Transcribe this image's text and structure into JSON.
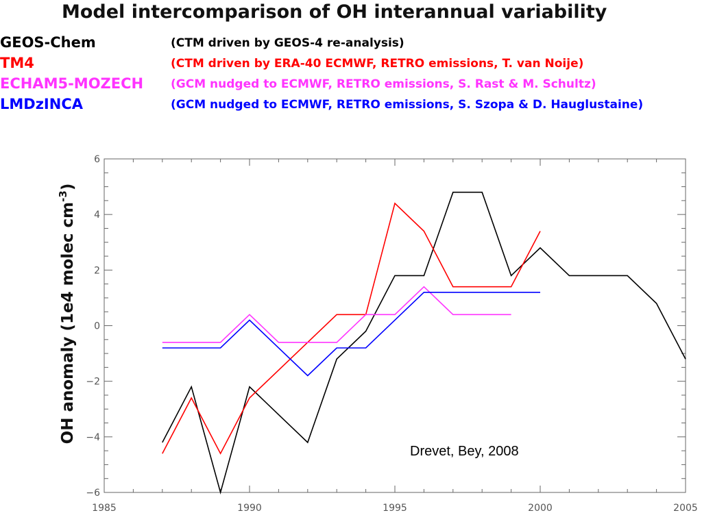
{
  "title": "Model intercomparison of OH interannual variability",
  "legend": [
    {
      "model": "GEOS-Chem",
      "desc": "(CTM driven by GEOS-4 re-analysis)",
      "color": "#000000"
    },
    {
      "model": "TM4",
      "desc": "(CTM driven by ERA-40 ECMWF, RETRO emissions, T. van Noije)",
      "color": "#ff0000"
    },
    {
      "model": "ECHAM5-MOZECH",
      "desc": "(GCM nudged to ECMWF, RETRO emissions, S. Rast & M. Schultz)",
      "color": "#ff33ff"
    },
    {
      "model": "LMDzINCA",
      "desc": "(GCM nudged to ECMWF, RETRO emissions, S. Szopa & D. Hauglustaine)",
      "color": "#0000ff"
    }
  ],
  "chart_data": {
    "type": "line",
    "title": "",
    "xlabel": "",
    "ylabel": "OH anomaly (1e4 molec cm-3)",
    "ylabel_parts": {
      "main": "OH anomaly (1e4 molec cm",
      "sup": "-3",
      "end": ")"
    },
    "xlim": [
      1985,
      2005
    ],
    "ylim": [
      -6,
      6
    ],
    "xticks": [
      1985,
      1990,
      1995,
      2000,
      2005
    ],
    "yticks": [
      -6,
      -4,
      -2,
      0,
      2,
      4,
      6
    ],
    "annotation": "Drevet, Bey, 2008",
    "grid": false,
    "series": [
      {
        "name": "GEOS-Chem",
        "color": "#000000",
        "x": [
          1987,
          1988,
          1989,
          1990,
          1991,
          1992,
          1993,
          1994,
          1995,
          1996,
          1997,
          1998,
          1999,
          2000,
          2001,
          2002,
          2003,
          2004,
          2005
        ],
        "y": [
          -4.2,
          -2.2,
          -6.1,
          -2.2,
          -3.2,
          -4.2,
          -1.2,
          -0.2,
          1.8,
          1.8,
          4.8,
          4.8,
          1.8,
          2.8,
          1.8,
          1.8,
          1.8,
          0.8,
          -1.2
        ]
      },
      {
        "name": "TM4",
        "color": "#ff0000",
        "x": [
          1987,
          1988,
          1989,
          1990,
          1993,
          1994,
          1995,
          1996,
          1997,
          1998,
          1999,
          2000
        ],
        "y": [
          -4.6,
          -2.6,
          -4.6,
          -2.6,
          0.4,
          0.4,
          4.4,
          3.4,
          1.4,
          1.4,
          1.4,
          3.4
        ]
      },
      {
        "name": "ECHAM5-MOZECH",
        "color": "#ff33ff",
        "x": [
          1987,
          1989,
          1990,
          1991,
          1993,
          1994,
          1995,
          1996,
          1997,
          1998,
          1999
        ],
        "y": [
          -0.6,
          -0.6,
          0.4,
          -0.6,
          -0.6,
          0.4,
          0.4,
          1.4,
          0.4,
          0.4,
          0.4
        ]
      },
      {
        "name": "LMDzINCA",
        "color": "#0000ff",
        "x": [
          1987,
          1989,
          1990,
          1992,
          1993,
          1994,
          1996,
          2000
        ],
        "y": [
          -0.8,
          -0.8,
          0.2,
          -1.8,
          -0.8,
          -0.8,
          1.2,
          1.2
        ]
      }
    ]
  }
}
